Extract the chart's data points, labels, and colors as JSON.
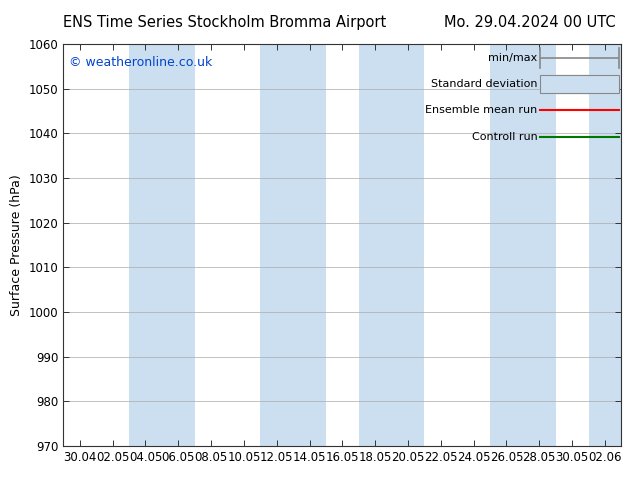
{
  "title_left": "ENS Time Series Stockholm Bromma Airport",
  "title_right": "Mo. 29.04.2024 00 UTC",
  "ylabel": "Surface Pressure (hPa)",
  "ylim": [
    970,
    1060
  ],
  "yticks": [
    970,
    980,
    990,
    1000,
    1010,
    1020,
    1030,
    1040,
    1050,
    1060
  ],
  "xtick_labels": [
    "30.04",
    "02.05",
    "04.05",
    "06.05",
    "08.05",
    "10.05",
    "12.05",
    "14.05",
    "16.05",
    "18.05",
    "20.05",
    "22.05",
    "24.05",
    "26.05",
    "28.05",
    "30.05",
    "02.06"
  ],
  "background_color": "#ffffff",
  "plot_bg_color": "#ffffff",
  "band_color": "#ccdff0",
  "watermark": "© weatheronline.co.uk",
  "title_fontsize": 10.5,
  "tick_label_fontsize": 8.5,
  "ylabel_fontsize": 9,
  "watermark_fontsize": 9,
  "legend_fontsize": 8
}
